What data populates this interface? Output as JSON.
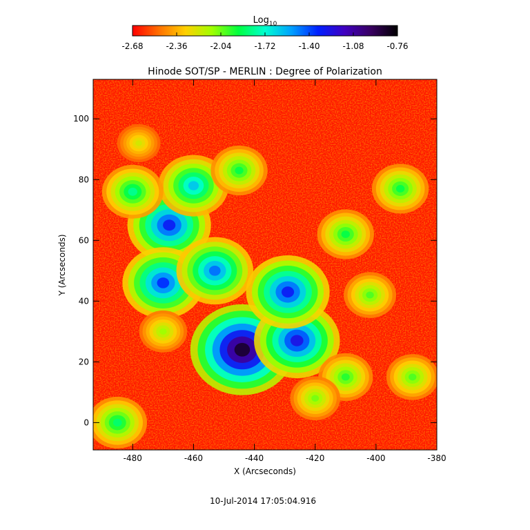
{
  "chart_data": {
    "type": "heatmap",
    "title": "Hinode SOT/SP - MERLIN : Degree of Polarization",
    "xlabel": "X (Arcseconds)",
    "ylabel": "Y (Arcseconds)",
    "xlim": [
      -493,
      -380
    ],
    "ylim": [
      -9,
      113
    ],
    "x_ticks": [
      -480,
      -460,
      -440,
      -420,
      -400,
      -380
    ],
    "y_ticks": [
      0,
      20,
      40,
      60,
      80,
      100
    ],
    "colorbar": {
      "label_base": "Log",
      "label_sub": "10",
      "range": [
        -2.68,
        -0.76
      ],
      "ticks": [
        "-2.68",
        "-2.36",
        "-2.04",
        "-1.72",
        "-1.40",
        "-1.08",
        "-0.76"
      ],
      "colormap": [
        "#ff0000",
        "#ff7000",
        "#ffd000",
        "#a0ff00",
        "#00ff40",
        "#00ffd0",
        "#00a0ff",
        "#0020ff",
        "#4000c0",
        "#380060",
        "#000000"
      ]
    },
    "features": [
      {
        "x": -444,
        "y": 24,
        "level": -0.85
      },
      {
        "x": -426,
        "y": 27,
        "level": -1.25
      },
      {
        "x": -429,
        "y": 43,
        "level": -1.3
      },
      {
        "x": -468,
        "y": 65,
        "level": -1.3
      },
      {
        "x": -470,
        "y": 46,
        "level": -1.35
      },
      {
        "x": -453,
        "y": 50,
        "level": -1.45
      },
      {
        "x": -460,
        "y": 78,
        "level": -1.6
      },
      {
        "x": -480,
        "y": 76,
        "level": -1.8
      },
      {
        "x": -445,
        "y": 83,
        "level": -1.9
      },
      {
        "x": -410,
        "y": 62,
        "level": -1.9
      },
      {
        "x": -392,
        "y": 77,
        "level": -1.9
      },
      {
        "x": -402,
        "y": 42,
        "level": -2.0
      },
      {
        "x": -410,
        "y": 15,
        "level": -1.95
      },
      {
        "x": -388,
        "y": 15,
        "level": -2.0
      },
      {
        "x": -485,
        "y": 0,
        "level": -1.85
      },
      {
        "x": -470,
        "y": 30,
        "level": -2.1
      },
      {
        "x": -420,
        "y": 8,
        "level": -2.05
      },
      {
        "x": -478,
        "y": 92,
        "level": -2.2
      }
    ],
    "background_level": -2.6
  },
  "timestamp": "10-Jul-2014 17:05:04.916"
}
